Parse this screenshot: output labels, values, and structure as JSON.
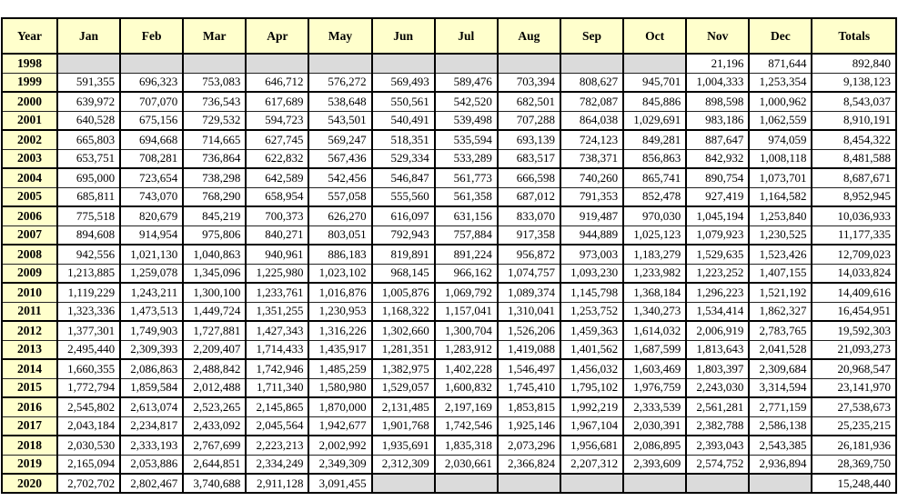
{
  "colors": {
    "header_bg": "#FFFFCC",
    "year_column_bg": "#FFFFCC",
    "empty_cell_bg": "#DBDBDB",
    "border": "#000000",
    "text": "#000000"
  },
  "chart_data": {
    "type": "table",
    "columns": [
      "Year",
      "Jan",
      "Feb",
      "Mar",
      "Apr",
      "May",
      "Jun",
      "Jul",
      "Aug",
      "Sep",
      "Oct",
      "Nov",
      "Dec",
      "Totals"
    ],
    "rows": [
      {
        "year": "1998",
        "values": [
          "",
          "",
          "",
          "",
          "",
          "",
          "",
          "",
          "",
          "",
          "21,196",
          "871,644"
        ],
        "total": "892,840"
      },
      {
        "year": "1999",
        "values": [
          "591,355",
          "696,323",
          "753,083",
          "646,712",
          "576,272",
          "569,493",
          "589,476",
          "703,394",
          "808,627",
          "945,701",
          "1,004,333",
          "1,253,354"
        ],
        "total": "9,138,123"
      },
      {
        "year": "2000",
        "values": [
          "639,972",
          "707,070",
          "736,543",
          "617,689",
          "538,648",
          "550,561",
          "542,520",
          "682,501",
          "782,087",
          "845,886",
          "898,598",
          "1,000,962"
        ],
        "total": "8,543,037"
      },
      {
        "year": "2001",
        "values": [
          "640,528",
          "675,156",
          "729,532",
          "594,723",
          "543,501",
          "540,491",
          "539,498",
          "707,288",
          "864,038",
          "1,029,691",
          "983,186",
          "1,062,559"
        ],
        "total": "8,910,191"
      },
      {
        "year": "2002",
        "values": [
          "665,803",
          "694,668",
          "714,665",
          "627,745",
          "569,247",
          "518,351",
          "535,594",
          "693,139",
          "724,123",
          "849,281",
          "887,647",
          "974,059"
        ],
        "total": "8,454,322"
      },
      {
        "year": "2003",
        "values": [
          "653,751",
          "708,281",
          "736,864",
          "622,832",
          "567,436",
          "529,334",
          "533,289",
          "683,517",
          "738,371",
          "856,863",
          "842,932",
          "1,008,118"
        ],
        "total": "8,481,588"
      },
      {
        "year": "2004",
        "values": [
          "695,000",
          "723,654",
          "738,298",
          "642,589",
          "542,456",
          "546,847",
          "561,773",
          "666,598",
          "740,260",
          "865,741",
          "890,754",
          "1,073,701"
        ],
        "total": "8,687,671"
      },
      {
        "year": "2005",
        "values": [
          "685,811",
          "743,070",
          "768,290",
          "658,954",
          "557,058",
          "555,560",
          "561,358",
          "687,012",
          "791,353",
          "852,478",
          "927,419",
          "1,164,582"
        ],
        "total": "8,952,945"
      },
      {
        "year": "2006",
        "values": [
          "775,518",
          "820,679",
          "845,219",
          "700,373",
          "626,270",
          "616,097",
          "631,156",
          "833,070",
          "919,487",
          "970,030",
          "1,045,194",
          "1,253,840"
        ],
        "total": "10,036,933"
      },
      {
        "year": "2007",
        "values": [
          "894,608",
          "914,954",
          "975,806",
          "840,271",
          "803,051",
          "792,943",
          "757,884",
          "917,358",
          "944,889",
          "1,025,123",
          "1,079,923",
          "1,230,525"
        ],
        "total": "11,177,335"
      },
      {
        "year": "2008",
        "values": [
          "942,556",
          "1,021,130",
          "1,040,863",
          "940,961",
          "886,183",
          "819,891",
          "891,224",
          "956,872",
          "973,003",
          "1,183,279",
          "1,529,635",
          "1,523,426"
        ],
        "total": "12,709,023"
      },
      {
        "year": "2009",
        "values": [
          "1,213,885",
          "1,259,078",
          "1,345,096",
          "1,225,980",
          "1,023,102",
          "968,145",
          "966,162",
          "1,074,757",
          "1,093,230",
          "1,233,982",
          "1,223,252",
          "1,407,155"
        ],
        "total": "14,033,824"
      },
      {
        "year": "2010",
        "values": [
          "1,119,229",
          "1,243,211",
          "1,300,100",
          "1,233,761",
          "1,016,876",
          "1,005,876",
          "1,069,792",
          "1,089,374",
          "1,145,798",
          "1,368,184",
          "1,296,223",
          "1,521,192"
        ],
        "total": "14,409,616"
      },
      {
        "year": "2011",
        "values": [
          "1,323,336",
          "1,473,513",
          "1,449,724",
          "1,351,255",
          "1,230,953",
          "1,168,322",
          "1,157,041",
          "1,310,041",
          "1,253,752",
          "1,340,273",
          "1,534,414",
          "1,862,327"
        ],
        "total": "16,454,951"
      },
      {
        "year": "2012",
        "values": [
          "1,377,301",
          "1,749,903",
          "1,727,881",
          "1,427,343",
          "1,316,226",
          "1,302,660",
          "1,300,704",
          "1,526,206",
          "1,459,363",
          "1,614,032",
          "2,006,919",
          "2,783,765"
        ],
        "total": "19,592,303"
      },
      {
        "year": "2013",
        "values": [
          "2,495,440",
          "2,309,393",
          "2,209,407",
          "1,714,433",
          "1,435,917",
          "1,281,351",
          "1,283,912",
          "1,419,088",
          "1,401,562",
          "1,687,599",
          "1,813,643",
          "2,041,528"
        ],
        "total": "21,093,273"
      },
      {
        "year": "2014",
        "values": [
          "1,660,355",
          "2,086,863",
          "2,488,842",
          "1,742,946",
          "1,485,259",
          "1,382,975",
          "1,402,228",
          "1,546,497",
          "1,456,032",
          "1,603,469",
          "1,803,397",
          "2,309,684"
        ],
        "total": "20,968,547"
      },
      {
        "year": "2015",
        "values": [
          "1,772,794",
          "1,859,584",
          "2,012,488",
          "1,711,340",
          "1,580,980",
          "1,529,057",
          "1,600,832",
          "1,745,410",
          "1,795,102",
          "1,976,759",
          "2,243,030",
          "3,314,594"
        ],
        "total": "23,141,970"
      },
      {
        "year": "2016",
        "values": [
          "2,545,802",
          "2,613,074",
          "2,523,265",
          "2,145,865",
          "1,870,000",
          "2,131,485",
          "2,197,169",
          "1,853,815",
          "1,992,219",
          "2,333,539",
          "2,561,281",
          "2,771,159"
        ],
        "total": "27,538,673"
      },
      {
        "year": "2017",
        "values": [
          "2,043,184",
          "2,234,817",
          "2,433,092",
          "2,045,564",
          "1,942,677",
          "1,901,768",
          "1,742,546",
          "1,925,146",
          "1,967,104",
          "2,030,391",
          "2,382,788",
          "2,586,138"
        ],
        "total": "25,235,215"
      },
      {
        "year": "2018",
        "values": [
          "2,030,530",
          "2,333,193",
          "2,767,699",
          "2,223,213",
          "2,002,992",
          "1,935,691",
          "1,835,318",
          "2,073,296",
          "1,956,681",
          "2,086,895",
          "2,393,043",
          "2,543,385"
        ],
        "total": "26,181,936"
      },
      {
        "year": "2019",
        "values": [
          "2,165,094",
          "2,053,886",
          "2,644,851",
          "2,334,249",
          "2,349,309",
          "2,312,309",
          "2,030,661",
          "2,366,824",
          "2,207,312",
          "2,393,609",
          "2,574,752",
          "2,936,894"
        ],
        "total": "28,369,750"
      },
      {
        "year": "2020",
        "values": [
          "2,702,702",
          "2,802,467",
          "3,740,688",
          "2,911,128",
          "3,091,455",
          "",
          "",
          "",
          "",
          "",
          "",
          ""
        ],
        "total": "15,248,440"
      }
    ]
  }
}
